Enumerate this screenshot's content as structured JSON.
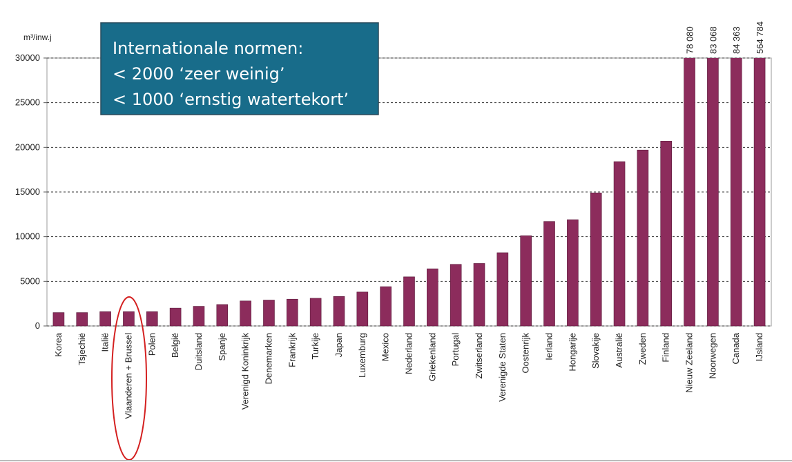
{
  "chart_data": {
    "type": "bar",
    "ylabel": "m³/inw.j",
    "annotation": [
      "Internationale normen:",
      "< 2000 ‘zeer weinig’",
      "< 1000 ‘ernstig watertekort’"
    ],
    "categories": [
      "Korea",
      "Tsjechië",
      "Italië",
      "Vlaanderen + Brussel",
      "Polen",
      "België",
      "Duitsland",
      "Spanje",
      "Verenigd Koninkrijk",
      "Denemarken",
      "Frankrijk",
      "Turkije",
      "Japan",
      "Luxemburg",
      "Mexico",
      "Nederland",
      "Griekenland",
      "Portugal",
      "Zwitserland",
      "Verenigde Staten",
      "Oostenrijk",
      "Ierland",
      "Hongarije",
      "Slovakije",
      "Australië",
      "Zweden",
      "Finland",
      "Nieuw Zeeland",
      "Noorwegen",
      "Canada",
      "IJsland"
    ],
    "values": [
      1500,
      1500,
      1600,
      1600,
      1600,
      2000,
      2200,
      2400,
      2800,
      2900,
      3000,
      3100,
      3300,
      3800,
      4400,
      5500,
      6400,
      6900,
      7000,
      8200,
      10100,
      11700,
      11900,
      14900,
      18400,
      19700,
      20700,
      78080,
      83068,
      84363,
      564784
    ],
    "value_labels": [
      null,
      null,
      null,
      null,
      null,
      null,
      null,
      null,
      null,
      null,
      null,
      null,
      null,
      null,
      null,
      null,
      null,
      null,
      null,
      null,
      null,
      null,
      null,
      null,
      null,
      null,
      null,
      "78 080",
      "83 068",
      "84 363",
      "564 784"
    ],
    "color": "#8c2c5c",
    "ylim": [
      0,
      30000
    ],
    "yticks": [
      0,
      5000,
      10000,
      15000,
      20000,
      25000,
      30000
    ],
    "grid": true
  }
}
